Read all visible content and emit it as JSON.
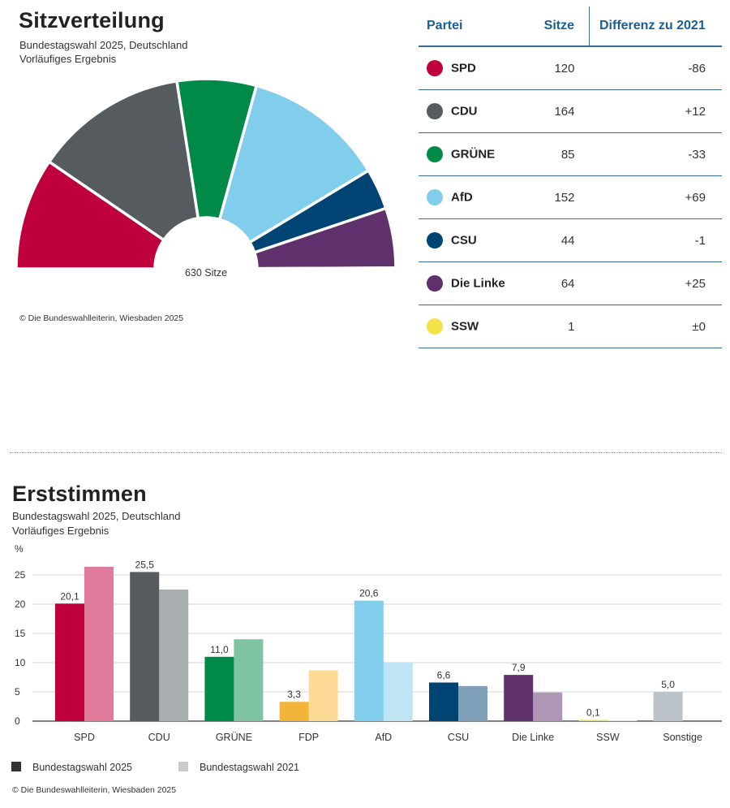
{
  "seats": {
    "title": "Sitzverteilung",
    "subtitle1": "Bundestagswahl 2025, Deutschland",
    "subtitle2": "Vorläufiges Ergebnis",
    "center_label": "630 Sitze",
    "credit": "© Die Bundeswahlleiterin, Wiesbaden 2025",
    "table": {
      "headers": [
        "Partei",
        "Sitze",
        "Differenz zu 2021"
      ],
      "rows": [
        {
          "party": "SPD",
          "seats": "120",
          "diff": "-86",
          "color": "#c0003c"
        },
        {
          "party": "CDU",
          "seats": "164",
          "diff": "+12",
          "color": "#555b5f"
        },
        {
          "party": "GRÜNE",
          "seats": "85",
          "diff": "-33",
          "color": "#008a47"
        },
        {
          "party": "AfD",
          "seats": "152",
          "diff": "+69",
          "color": "#80cdec"
        },
        {
          "party": "CSU",
          "seats": "44",
          "diff": "-1",
          "color": "#004473"
        },
        {
          "party": "Die Linke",
          "seats": "64",
          "diff": "+25",
          "color": "#5f306b"
        },
        {
          "party": "SSW",
          "seats": "1",
          "diff": "±0",
          "color": "#f5e04a"
        }
      ]
    }
  },
  "votes": {
    "title": "Erststimmen",
    "subtitle1": "Bundestagswahl 2025, Deutschland",
    "subtitle2": "Vorläufiges Ergebnis",
    "legend": [
      "Bundestagswahl 2025",
      "Bundestagswahl 2021"
    ],
    "credit": "© Die Bundeswahlleiterin, Wiesbaden 2025"
  },
  "chart_data": [
    {
      "type": "pie",
      "variant": "half-donut parliament",
      "title": "Sitzverteilung",
      "categories": [
        "SPD",
        "CDU",
        "GRÜNE",
        "AfD",
        "CSU",
        "Die Linke",
        "SSW"
      ],
      "values": [
        120,
        164,
        85,
        152,
        44,
        64,
        1
      ],
      "colors": [
        "#c0003c",
        "#555b5f",
        "#008a47",
        "#80cdec",
        "#004473",
        "#5f306b",
        "#f5e04a"
      ],
      "total_label": "630 Sitze"
    },
    {
      "type": "bar",
      "title": "Erststimmen",
      "ylabel": "%",
      "ylim": [
        0,
        27
      ],
      "yticks": [
        0,
        5,
        10,
        15,
        20,
        25
      ],
      "grid": true,
      "categories": [
        "SPD",
        "CDU",
        "GRÜNE",
        "FDP",
        "AfD",
        "CSU",
        "Die Linke",
        "SSW",
        "Sonstige"
      ],
      "series": [
        {
          "name": "Bundestagswahl 2025",
          "values": [
            20.1,
            25.5,
            11.0,
            3.3,
            20.6,
            6.6,
            7.9,
            0.1,
            5.0
          ],
          "labels": [
            "20,1",
            "25,5",
            "11,0",
            "3,3",
            "20,6",
            "6,6",
            "7,9",
            "0,1",
            "5,0"
          ],
          "colors": [
            "#c0003c",
            "#555b5f",
            "#008a47",
            "#f3b43a",
            "#80cdec",
            "#004473",
            "#5f306b",
            "#f5e04a",
            "#bcc3c8"
          ]
        },
        {
          "name": "Bundestagswahl 2021",
          "values": [
            26.4,
            22.5,
            14.0,
            8.7,
            10.1,
            6.0,
            4.9,
            0.1,
            null
          ],
          "colors": [
            "#e07b9b",
            "#a8adb0",
            "#7fc4a2",
            "#fcd994",
            "#bfe5f5",
            "#7f9fb9",
            "#ae97b4",
            "#f9ee9c",
            "#e3e6e8"
          ]
        }
      ]
    }
  ]
}
